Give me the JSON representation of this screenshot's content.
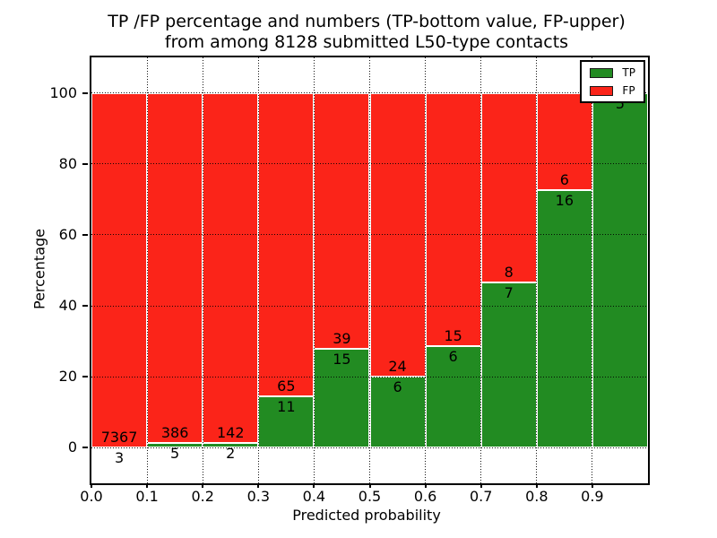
{
  "figure": {
    "title_line1": "TP /FP percentage and numbers (TP-bottom value, FP-upper)",
    "title_line2": "from among 8128 submitted L50-type contacts",
    "xlabel": "Predicted probability",
    "ylabel": "Percentage"
  },
  "legend": {
    "position": "upper-right",
    "items": [
      {
        "label": "TP",
        "color": "#228b22"
      },
      {
        "label": "FP",
        "color": "#fb2419"
      }
    ]
  },
  "chart_data": {
    "type": "bar",
    "stacked": true,
    "normalized": "each bin stacked to 100%",
    "title": "TP /FP percentage and numbers (TP-bottom value, FP-upper) from among 8128 submitted L50-type contacts",
    "xlabel": "Predicted probability",
    "ylabel": "Percentage",
    "total_contacts": 8128,
    "bin_width": 0.1,
    "bin_starts": [
      0.0,
      0.1,
      0.2,
      0.3,
      0.4,
      0.5,
      0.6,
      0.7,
      0.8,
      0.9
    ],
    "series": [
      {
        "name": "TP",
        "color": "#228b22",
        "values": [
          3,
          5,
          2,
          11,
          15,
          6,
          6,
          7,
          16,
          5
        ]
      },
      {
        "name": "FP",
        "color": "#fb2419",
        "values": [
          7367,
          386,
          142,
          65,
          39,
          24,
          15,
          8,
          6,
          0
        ]
      }
    ],
    "tp_percent_per_bin": [
      0.04,
      1.28,
      1.39,
      14.47,
      27.78,
      20.0,
      28.57,
      46.67,
      72.73,
      100.0
    ],
    "bar_labels": "FP count above TP/FP boundary, TP count below boundary",
    "xticks": [
      "0.0",
      "0.1",
      "0.2",
      "0.3",
      "0.4",
      "0.5",
      "0.6",
      "0.7",
      "0.8",
      "0.9"
    ],
    "yticks": [
      0,
      20,
      40,
      60,
      80,
      100
    ],
    "xlim": [
      0,
      1
    ],
    "ylim": [
      -10,
      110
    ],
    "grid": "dotted black, drawn above bars",
    "legend_position": "upper right"
  }
}
